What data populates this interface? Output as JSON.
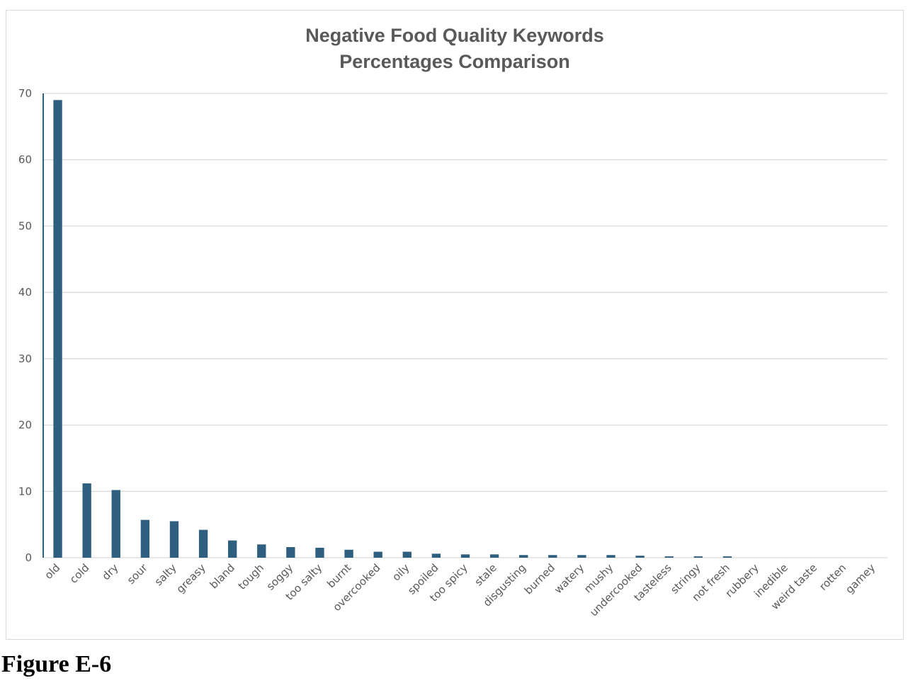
{
  "caption": "Figure E-6",
  "chart_data": {
    "type": "bar",
    "title": [
      "Negative Food Quality Keywords",
      "Percentages Comparison"
    ],
    "xlabel": "",
    "ylabel": "",
    "ylim": [
      0,
      70
    ],
    "yticks": [
      0,
      10,
      20,
      30,
      40,
      50,
      60,
      70
    ],
    "grid": true,
    "legend": "none",
    "bar_color": "#2e5f7e",
    "categories": [
      "old",
      "cold",
      "dry",
      "sour",
      "salty",
      "greasy",
      "bland",
      "tough",
      "soggy",
      "too salty",
      "burnt",
      "overcooked",
      "oily",
      "spoiled",
      "too spicy",
      "stale",
      "disgusting",
      "burned",
      "watery",
      "mushy",
      "undercooked",
      "tasteless",
      "stringy",
      "not fresh",
      "rubbery",
      "inedible",
      "weird taste",
      "rotten",
      "gamey"
    ],
    "values": [
      69.0,
      11.2,
      10.2,
      5.7,
      5.5,
      4.2,
      2.6,
      2.0,
      1.6,
      1.5,
      1.2,
      0.9,
      0.9,
      0.6,
      0.5,
      0.5,
      0.4,
      0.4,
      0.4,
      0.4,
      0.3,
      0.2,
      0.2,
      0.2,
      0.0,
      0.0,
      0.0,
      0.0,
      0.0
    ]
  }
}
